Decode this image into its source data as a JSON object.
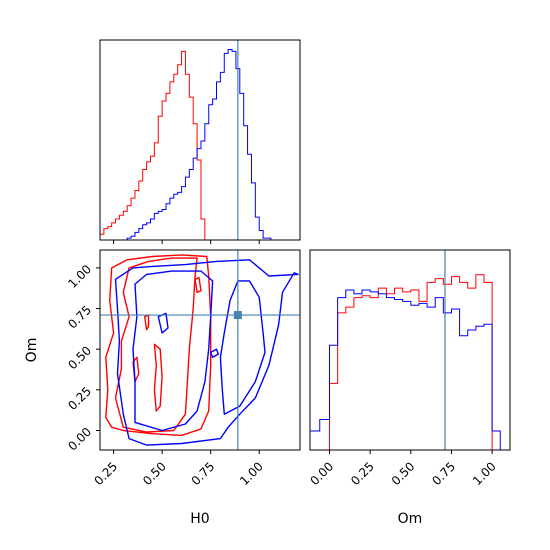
{
  "chart_data": {
    "type": "corner",
    "parameters": [
      "H0",
      "Om"
    ],
    "truth": {
      "H0": 0.89,
      "Om": 0.71,
      "color": "#4682b4"
    },
    "colors": {
      "red": "#ff0000",
      "blue": "#0000ff"
    },
    "H0": {
      "xlim": [
        0.18,
        1.21
      ],
      "ticks": [
        0.25,
        0.5,
        0.75,
        1.0
      ],
      "tick_labels": [
        "0.25",
        "0.50",
        "0.75",
        "1.00"
      ],
      "xlabel": "H0"
    },
    "Om": {
      "lim": [
        -0.12,
        1.11
      ],
      "ticks": [
        0.0,
        0.25,
        0.5,
        0.75,
        1.0
      ],
      "tick_labels": [
        "0.00",
        "0.25",
        "0.50",
        "0.75",
        "1.00"
      ],
      "xlabel": "Om",
      "ylabel": "Om"
    },
    "hist_H0": {
      "edges": [
        0.18,
        0.2,
        0.22,
        0.24,
        0.26,
        0.28,
        0.3,
        0.32,
        0.34,
        0.36,
        0.38,
        0.4,
        0.42,
        0.44,
        0.46,
        0.48,
        0.5,
        0.52,
        0.54,
        0.56,
        0.58,
        0.6,
        0.62,
        0.64,
        0.66,
        0.68,
        0.7,
        0.72,
        0.74,
        0.76,
        0.78,
        0.8,
        0.82,
        0.84,
        0.86,
        0.88,
        0.9,
        0.92,
        0.94,
        0.96,
        0.98,
        1.0,
        1.02,
        1.04,
        1.06,
        1.08,
        1.1,
        1.12,
        1.14,
        1.16,
        1.18,
        1.2
      ],
      "red": [
        0.03,
        0.06,
        0.07,
        0.09,
        0.11,
        0.13,
        0.15,
        0.18,
        0.22,
        0.26,
        0.31,
        0.37,
        0.41,
        0.44,
        0.51,
        0.65,
        0.73,
        0.77,
        0.83,
        0.87,
        0.92,
        0.99,
        0.87,
        0.75,
        0.61,
        0.42,
        0.11,
        0.0,
        0.0,
        0.0,
        0.0,
        0.0,
        0.0,
        0.0,
        0.0,
        0.0,
        0.0,
        0.0,
        0.0,
        0.0,
        0.0,
        0.0,
        0.0,
        0.0,
        0.0,
        0.0,
        0.0,
        0.0,
        0.0,
        0.0,
        0.0
      ],
      "blue": [
        0.0,
        0.0,
        0.0,
        0.0,
        0.0,
        0.0,
        0.0,
        0.01,
        0.02,
        0.04,
        0.06,
        0.08,
        0.09,
        0.11,
        0.14,
        0.15,
        0.16,
        0.19,
        0.22,
        0.24,
        0.25,
        0.28,
        0.33,
        0.37,
        0.43,
        0.48,
        0.52,
        0.61,
        0.71,
        0.74,
        0.83,
        0.88,
        0.98,
        1.0,
        0.99,
        0.9,
        0.77,
        0.6,
        0.45,
        0.3,
        0.12,
        0.05,
        0.01,
        0.01,
        0.0,
        0.0,
        0.0,
        0.0,
        0.0,
        0.0,
        0.0
      ]
    },
    "hist_Om": {
      "edges": [
        -0.12,
        -0.06,
        0.0,
        0.05,
        0.1,
        0.15,
        0.2,
        0.25,
        0.3,
        0.35,
        0.4,
        0.45,
        0.5,
        0.55,
        0.6,
        0.65,
        0.7,
        0.75,
        0.8,
        0.85,
        0.9,
        0.95,
        1.0,
        1.05
      ],
      "red": [
        0.0,
        0.0,
        0.35,
        0.72,
        0.75,
        0.8,
        0.81,
        0.8,
        0.85,
        0.82,
        0.85,
        0.83,
        0.84,
        0.78,
        0.88,
        0.9,
        0.87,
        0.91,
        0.88,
        0.85,
        0.92,
        0.88,
        0.0
      ],
      "blue": [
        0.1,
        0.16,
        0.55,
        0.8,
        0.84,
        0.82,
        0.84,
        0.83,
        0.82,
        0.8,
        0.79,
        0.78,
        0.76,
        0.77,
        0.75,
        0.8,
        0.72,
        0.74,
        0.6,
        0.63,
        0.65,
        0.66,
        0.1
      ]
    },
    "contours": {
      "red": [
        [
          [
            0.21,
            0.08
          ],
          [
            0.24,
            0.02
          ],
          [
            0.3,
            0.0
          ],
          [
            0.45,
            -0.02
          ],
          [
            0.6,
            -0.03
          ],
          [
            0.7,
            0.01
          ],
          [
            0.74,
            0.12
          ],
          [
            0.75,
            0.4
          ],
          [
            0.75,
            0.7
          ],
          [
            0.74,
            0.95
          ],
          [
            0.73,
            1.07
          ],
          [
            0.6,
            1.08
          ],
          [
            0.45,
            1.07
          ],
          [
            0.32,
            1.05
          ],
          [
            0.24,
            1.0
          ],
          [
            0.23,
            0.8
          ],
          [
            0.25,
            0.6
          ],
          [
            0.21,
            0.45
          ],
          [
            0.22,
            0.25
          ],
          [
            0.21,
            0.08
          ]
        ],
        [
          [
            0.3,
            0.02
          ],
          [
            0.42,
            -0.01
          ],
          [
            0.56,
            0.0
          ],
          [
            0.62,
            0.1
          ],
          [
            0.63,
            0.3
          ],
          [
            0.64,
            0.5
          ],
          [
            0.66,
            0.75
          ],
          [
            0.67,
            0.95
          ],
          [
            0.68,
            1.06
          ],
          [
            0.55,
            1.06
          ],
          [
            0.43,
            1.04
          ],
          [
            0.33,
            1.0
          ],
          [
            0.3,
            0.85
          ],
          [
            0.33,
            0.7
          ],
          [
            0.29,
            0.55
          ],
          [
            0.29,
            0.38
          ],
          [
            0.26,
            0.2
          ],
          [
            0.3,
            0.02
          ]
        ],
        [
          [
            0.47,
            0.12
          ],
          [
            0.46,
            0.25
          ],
          [
            0.47,
            0.4
          ],
          [
            0.46,
            0.53
          ],
          [
            0.49,
            0.5
          ],
          [
            0.5,
            0.33
          ],
          [
            0.49,
            0.15
          ],
          [
            0.47,
            0.12
          ]
        ],
        [
          [
            0.36,
            0.3
          ],
          [
            0.35,
            0.42
          ],
          [
            0.37,
            0.45
          ],
          [
            0.38,
            0.35
          ],
          [
            0.36,
            0.3
          ]
        ],
        [
          [
            0.42,
            0.62
          ],
          [
            0.41,
            0.7
          ],
          [
            0.43,
            0.71
          ],
          [
            0.43,
            0.64
          ],
          [
            0.42,
            0.62
          ]
        ],
        [
          [
            0.68,
            0.85
          ],
          [
            0.67,
            0.93
          ],
          [
            0.69,
            0.94
          ],
          [
            0.7,
            0.86
          ],
          [
            0.68,
            0.85
          ]
        ]
      ],
      "blue": [
        [
          [
            0.42,
            -0.09
          ],
          [
            0.6,
            -0.08
          ],
          [
            0.8,
            -0.05
          ],
          [
            0.84,
            0.02
          ],
          [
            0.9,
            0.1
          ],
          [
            0.98,
            0.2
          ],
          [
            1.05,
            0.4
          ],
          [
            1.1,
            0.65
          ],
          [
            1.12,
            0.85
          ],
          [
            1.18,
            0.97
          ],
          [
            1.2,
            0.96
          ],
          [
            1.05,
            0.95
          ],
          [
            0.95,
            1.05
          ],
          [
            0.78,
            1.04
          ],
          [
            0.62,
            1.02
          ],
          [
            0.46,
            1.01
          ],
          [
            0.35,
            1.0
          ],
          [
            0.26,
            0.93
          ],
          [
            0.27,
            0.75
          ],
          [
            0.28,
            0.55
          ],
          [
            0.27,
            0.35
          ],
          [
            0.3,
            0.1
          ],
          [
            0.33,
            -0.05
          ],
          [
            0.42,
            -0.09
          ]
        ],
        [
          [
            0.36,
            0.05
          ],
          [
            0.5,
            0.0
          ],
          [
            0.62,
            0.04
          ],
          [
            0.68,
            0.12
          ],
          [
            0.72,
            0.3
          ],
          [
            0.74,
            0.5
          ],
          [
            0.75,
            0.7
          ],
          [
            0.76,
            0.92
          ],
          [
            0.7,
            0.98
          ],
          [
            0.55,
            0.98
          ],
          [
            0.42,
            0.96
          ],
          [
            0.36,
            0.9
          ],
          [
            0.37,
            0.7
          ],
          [
            0.35,
            0.5
          ],
          [
            0.36,
            0.3
          ],
          [
            0.36,
            0.05
          ]
        ],
        [
          [
            0.82,
            0.1
          ],
          [
            0.9,
            0.15
          ],
          [
            0.98,
            0.3
          ],
          [
            1.03,
            0.48
          ],
          [
            1.02,
            0.6
          ],
          [
            1.0,
            0.82
          ],
          [
            0.95,
            0.92
          ],
          [
            0.89,
            0.92
          ],
          [
            0.85,
            0.8
          ],
          [
            0.82,
            0.6
          ],
          [
            0.8,
            0.45
          ],
          [
            0.81,
            0.25
          ],
          [
            0.82,
            0.1
          ]
        ],
        [
          [
            0.76,
            0.45
          ],
          [
            0.79,
            0.47
          ],
          [
            0.78,
            0.5
          ],
          [
            0.75,
            0.48
          ],
          [
            0.76,
            0.45
          ]
        ],
        [
          [
            0.5,
            0.6
          ],
          [
            0.48,
            0.7
          ],
          [
            0.52,
            0.72
          ],
          [
            0.53,
            0.63
          ],
          [
            0.5,
            0.6
          ]
        ]
      ]
    }
  }
}
